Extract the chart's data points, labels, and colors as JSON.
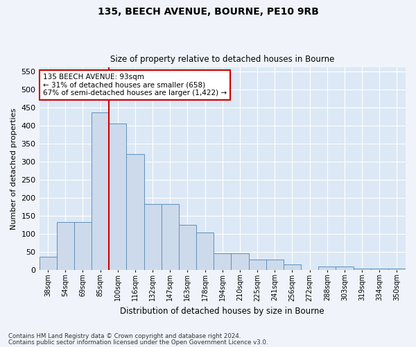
{
  "title1": "135, BEECH AVENUE, BOURNE, PE10 9RB",
  "title2": "Size of property relative to detached houses in Bourne",
  "xlabel": "Distribution of detached houses by size in Bourne",
  "ylabel": "Number of detached properties",
  "categories": [
    "38sqm",
    "54sqm",
    "69sqm",
    "85sqm",
    "100sqm",
    "116sqm",
    "132sqm",
    "147sqm",
    "163sqm",
    "178sqm",
    "194sqm",
    "210sqm",
    "225sqm",
    "241sqm",
    "256sqm",
    "272sqm",
    "288sqm",
    "303sqm",
    "319sqm",
    "334sqm",
    "350sqm"
  ],
  "values": [
    35,
    132,
    132,
    435,
    405,
    320,
    182,
    182,
    125,
    103,
    46,
    46,
    28,
    28,
    15,
    0,
    9,
    9,
    4,
    4,
    4
  ],
  "bar_color": "#cddaeb",
  "bar_edge_color": "#6090bb",
  "vline_x": 3.5,
  "vline_color": "#cc0000",
  "annotation_title": "135 BEECH AVENUE: 93sqm",
  "annotation_line1": "← 31% of detached houses are smaller (658)",
  "annotation_line2": "67% of semi-detached houses are larger (1,422) →",
  "annotation_box_color": "#cc0000",
  "ylim": [
    0,
    560
  ],
  "yticks": [
    0,
    50,
    100,
    150,
    200,
    250,
    300,
    350,
    400,
    450,
    500,
    550
  ],
  "footnote1": "Contains HM Land Registry data © Crown copyright and database right 2024.",
  "footnote2": "Contains public sector information licensed under the Open Government Licence v3.0.",
  "fig_bg_color": "#f0f4fa",
  "plot_bg_color": "#dce8f5",
  "grid_color": "#ffffff"
}
